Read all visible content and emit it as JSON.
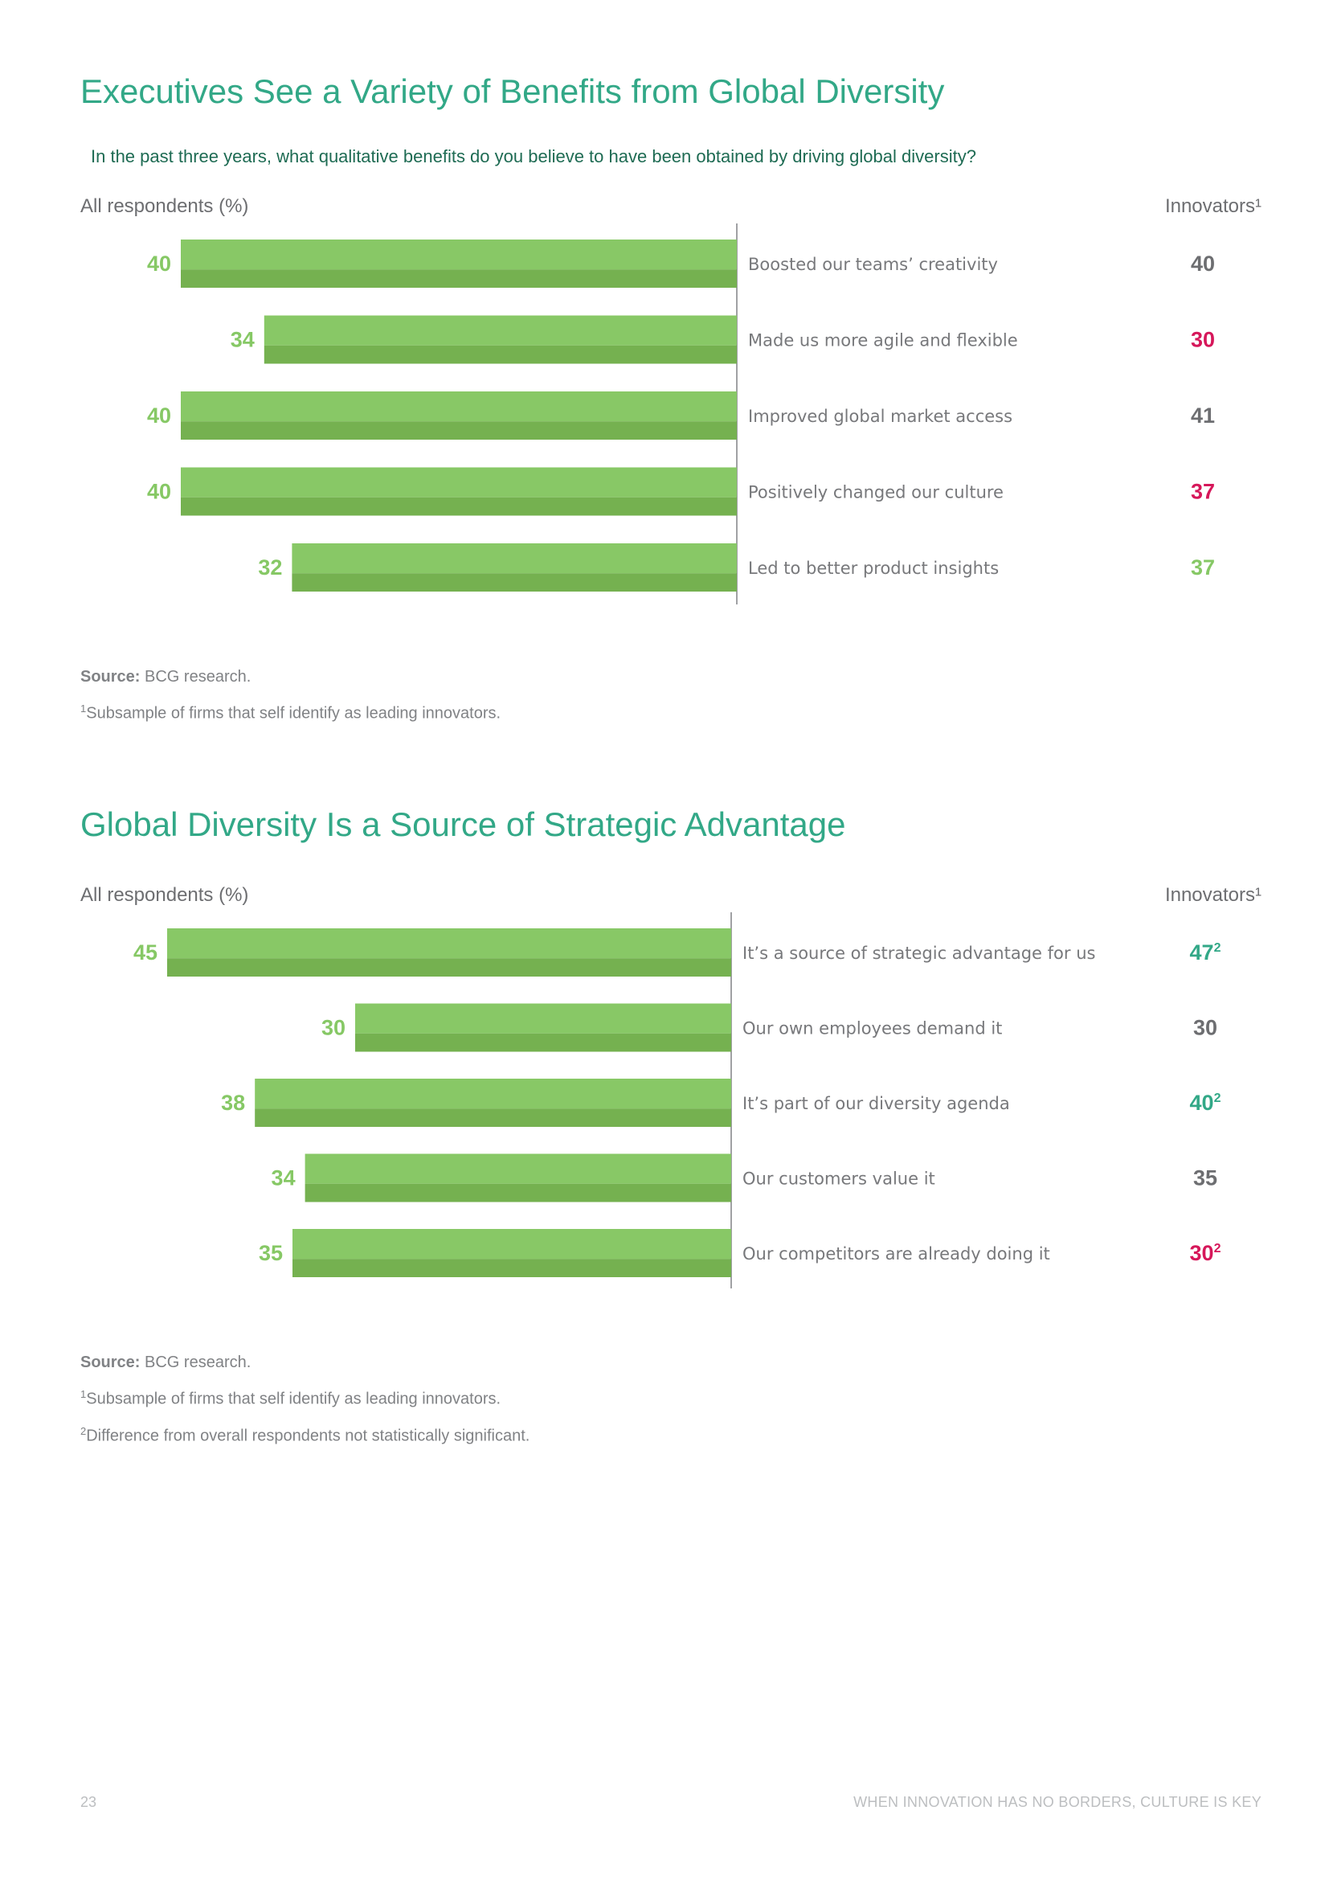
{
  "charts": [
    {
      "title": "Executives See a Variety of Benefits from Global Diversity",
      "question": "In the past three years, what qualitative benefits do you believe to have been obtained by driving global diversity?",
      "left_header": "All respondents (%)",
      "right_header": "Innovators¹",
      "source_label": "Source:",
      "source_text": " BCG research.",
      "footnotes": [
        {
          "mark": "1",
          "text": "Subsample of firms that self identify as leading innovators."
        }
      ]
    },
    {
      "title": "Global Diversity Is a Source of Strategic Advantage",
      "left_header": "All respondents (%)",
      "right_header": "Innovators¹",
      "source_label": "Source:",
      "source_text": " BCG research.",
      "footnotes": [
        {
          "mark": "1",
          "text": "Subsample of firms that self identify as leading innovators."
        },
        {
          "mark": "2",
          "text": "Difference from overall respondents not statistically significant."
        }
      ]
    }
  ],
  "chart_data": [
    {
      "type": "bar",
      "orientation": "horizontal",
      "title": "Executives See a Variety of Benefits from Global Diversity",
      "categories": [
        "Boosted our teams’ creativity",
        "Made us more agile and flexible",
        "Improved global market access",
        "Positively changed our culture",
        "Led to better product insights"
      ],
      "series": [
        {
          "name": "All respondents (%)",
          "values": [
            40,
            34,
            40,
            40,
            32
          ]
        },
        {
          "name": "Innovators¹",
          "values": [
            40,
            30,
            41,
            37,
            37
          ]
        }
      ],
      "innovator_colors": [
        "#6d6e71",
        "#d6175a",
        "#6d6e71",
        "#d6175a",
        "#86c865"
      ],
      "innovator_notes": [
        "",
        "",
        "",
        "",
        ""
      ],
      "bar_color": "#88c866"
    },
    {
      "type": "bar",
      "orientation": "horizontal",
      "title": "Global Diversity Is a Source of Strategic Advantage",
      "categories": [
        "It’s a source of strategic advantage for us",
        "Our own employees demand it",
        "It’s part of our diversity agenda",
        "Our customers value it",
        "Our competitors are already doing it"
      ],
      "series": [
        {
          "name": "All respondents (%)",
          "values": [
            45,
            30,
            38,
            34,
            35
          ]
        },
        {
          "name": "Innovators¹",
          "values": [
            47,
            30,
            40,
            35,
            30
          ]
        }
      ],
      "innovator_colors": [
        "#32a887",
        "#6d6e71",
        "#32a887",
        "#6d6e71",
        "#d6175a"
      ],
      "innovator_notes": [
        "2",
        "",
        "2",
        "",
        "2"
      ],
      "bar_color": "#88c866"
    }
  ],
  "footer": {
    "page_number": "23",
    "report_title": "WHEN INNOVATION HAS NO BORDERS, CULTURE IS KEY"
  }
}
